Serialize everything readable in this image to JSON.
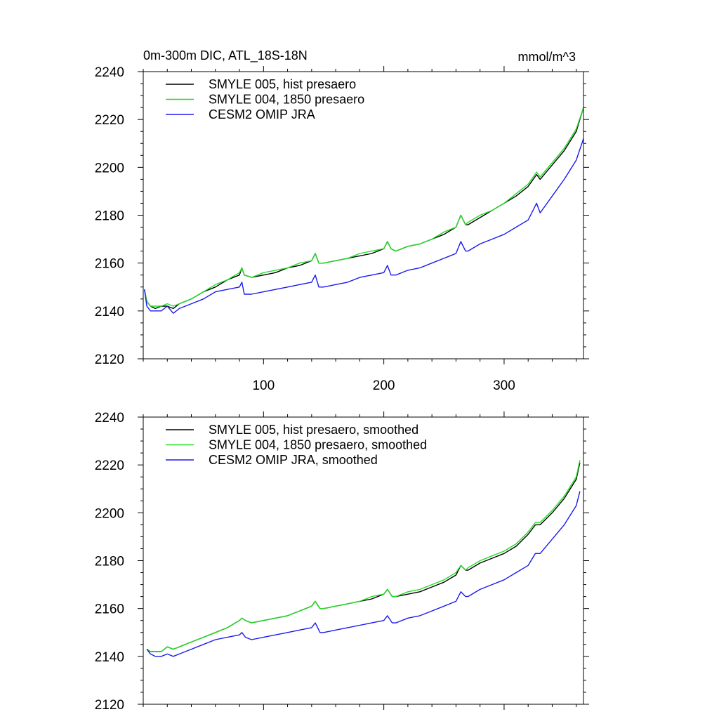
{
  "chart_data": [
    {
      "type": "line",
      "title_left": "0m-300m DIC, ATL_18S-18N",
      "title_right": "mmol/m^3",
      "xlim": [
        0,
        366
      ],
      "ylim": [
        2120,
        2240
      ],
      "xticks": [
        100,
        200,
        300
      ],
      "xtick_labels": [
        "100",
        "200",
        "300"
      ],
      "yticks": [
        2120,
        2140,
        2160,
        2180,
        2200,
        2220,
        2240
      ],
      "ytick_labels": [
        "2120",
        "2140",
        "2160",
        "2180",
        "2200",
        "2220",
        "2240"
      ],
      "legend_position": "top-left",
      "x": [
        1,
        3,
        6,
        10,
        15,
        20,
        25,
        30,
        40,
        50,
        60,
        70,
        80,
        82,
        84,
        90,
        100,
        110,
        120,
        130,
        140,
        143,
        146,
        150,
        160,
        170,
        180,
        190,
        200,
        203,
        206,
        210,
        220,
        230,
        240,
        250,
        260,
        264,
        268,
        270,
        280,
        290,
        300,
        310,
        320,
        327,
        330,
        340,
        350,
        360,
        366
      ],
      "series": [
        {
          "name": "SMYLE 005, hist presaero",
          "color": "#000000",
          "values": [
            2149,
            2144,
            2142,
            2141,
            2142,
            2142,
            2141,
            2143,
            2145,
            2148,
            2150,
            2153,
            2155,
            2158,
            2155,
            2154,
            2155,
            2156,
            2158,
            2159,
            2161,
            2164,
            2160,
            2160,
            2161,
            2162,
            2163,
            2164,
            2166,
            2169,
            2166,
            2165,
            2167,
            2168,
            2170,
            2172,
            2175,
            2180,
            2176,
            2176,
            2179,
            2182,
            2185,
            2188,
            2192,
            2197,
            2195,
            2201,
            2207,
            2215,
            2225
          ]
        },
        {
          "name": "SMYLE 004, 1850 presaero",
          "color": "#22dd22",
          "values": [
            2149,
            2144,
            2142,
            2142,
            2142,
            2143,
            2142,
            2143,
            2145,
            2148,
            2151,
            2153,
            2156,
            2158,
            2155,
            2154,
            2156,
            2157,
            2158,
            2160,
            2161,
            2164,
            2160,
            2160,
            2161,
            2162,
            2164,
            2165,
            2166,
            2169,
            2166,
            2165,
            2167,
            2168,
            2170,
            2173,
            2175,
            2180,
            2176,
            2177,
            2180,
            2182,
            2185,
            2189,
            2193,
            2198,
            2196,
            2202,
            2208,
            2216,
            2225
          ]
        },
        {
          "name": "CESM2 OMIP JRA",
          "color": "#1a1aee",
          "values": [
            2149,
            2142,
            2140,
            2140,
            2140,
            2142,
            2139,
            2141,
            2143,
            2145,
            2148,
            2149,
            2150,
            2152,
            2147,
            2147,
            2148,
            2149,
            2150,
            2151,
            2152,
            2155,
            2150,
            2150,
            2151,
            2152,
            2154,
            2155,
            2156,
            2159,
            2155,
            2155,
            2157,
            2158,
            2160,
            2162,
            2164,
            2169,
            2165,
            2165,
            2168,
            2170,
            2172,
            2175,
            2178,
            2185,
            2181,
            2188,
            2195,
            2203,
            2212
          ]
        }
      ]
    },
    {
      "type": "line",
      "xlim": [
        0,
        366
      ],
      "ylim": [
        2120,
        2240
      ],
      "xticks": [
        100,
        200,
        300
      ],
      "yticks": [
        2120,
        2140,
        2160,
        2180,
        2200,
        2220,
        2240
      ],
      "ytick_labels": [
        "2120",
        "2140",
        "2160",
        "2180",
        "2200",
        "2220",
        "2240"
      ],
      "legend_position": "top-left",
      "x": [
        3,
        6,
        10,
        15,
        20,
        25,
        30,
        40,
        50,
        60,
        70,
        80,
        82,
        85,
        90,
        100,
        110,
        120,
        130,
        140,
        143,
        147,
        150,
        160,
        170,
        180,
        190,
        200,
        203,
        207,
        210,
        220,
        230,
        240,
        250,
        260,
        264,
        268,
        270,
        280,
        290,
        300,
        310,
        320,
        326,
        330,
        340,
        350,
        360,
        363
      ],
      "series": [
        {
          "name": "SMYLE 005, hist presaero, smoothed",
          "color": "#000000",
          "values": [
            2143,
            2142,
            2142,
            2142,
            2144,
            2143,
            2144,
            2146,
            2148,
            2150,
            2152,
            2155,
            2156,
            2155,
            2154,
            2155,
            2156,
            2157,
            2159,
            2161,
            2163,
            2160,
            2160,
            2161,
            2162,
            2163,
            2164,
            2166,
            2168,
            2165,
            2165,
            2166,
            2167,
            2169,
            2171,
            2174,
            2178,
            2176,
            2176,
            2179,
            2181,
            2183,
            2186,
            2191,
            2195,
            2195,
            2200,
            2206,
            2214,
            2221
          ]
        },
        {
          "name": "SMYLE 004, 1850 presaero, smoothed",
          "color": "#22dd22",
          "values": [
            2143,
            2142,
            2142,
            2142,
            2144,
            2143,
            2144,
            2146,
            2148,
            2150,
            2152,
            2155,
            2156,
            2155,
            2154,
            2155,
            2156,
            2157,
            2159,
            2161,
            2163,
            2160,
            2160,
            2161,
            2162,
            2163,
            2165,
            2166,
            2168,
            2165,
            2165,
            2167,
            2168,
            2170,
            2172,
            2175,
            2178,
            2176,
            2177,
            2180,
            2182,
            2184,
            2187,
            2192,
            2196,
            2196,
            2201,
            2207,
            2215,
            2222
          ]
        },
        {
          "name": "CESM2 OMIP JRA, smoothed",
          "color": "#1a1aee",
          "values": [
            2143,
            2141,
            2140,
            2140,
            2141,
            2140,
            2141,
            2143,
            2145,
            2147,
            2148,
            2149,
            2150,
            2148,
            2147,
            2148,
            2149,
            2150,
            2151,
            2152,
            2154,
            2150,
            2150,
            2151,
            2152,
            2153,
            2154,
            2155,
            2157,
            2154,
            2154,
            2156,
            2157,
            2159,
            2161,
            2163,
            2167,
            2165,
            2165,
            2168,
            2170,
            2172,
            2175,
            2178,
            2183,
            2183,
            2189,
            2195,
            2203,
            2209
          ]
        }
      ]
    }
  ]
}
